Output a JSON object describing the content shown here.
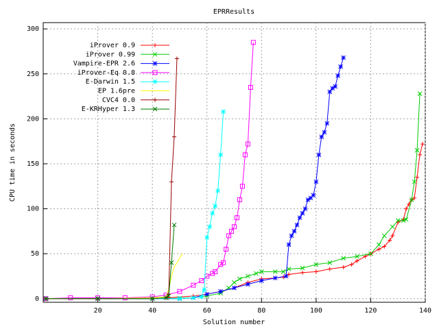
{
  "chart_data": {
    "type": "line",
    "title": "EPRResults",
    "x_label": "Solution number",
    "y_label": "CPU time in seconds",
    "xlim": [
      0,
      140
    ],
    "ylim": [
      -4,
      307
    ],
    "xticks": [
      20,
      40,
      60,
      80,
      100,
      120,
      140
    ],
    "yticks": [
      0,
      50,
      100,
      150,
      200,
      250,
      300
    ],
    "grid": true,
    "legend": "top-left",
    "series": [
      {
        "name": "iProver 0.9",
        "color": "#ff0000",
        "marker": "plus",
        "x": [
          1,
          20,
          40,
          46,
          55,
          60,
          65,
          70,
          75,
          80,
          85,
          88,
          90,
          95,
          100,
          105,
          110,
          113,
          115,
          118,
          120,
          123,
          125,
          127,
          128,
          130,
          132,
          133,
          134,
          135,
          136,
          137,
          138,
          139
        ],
        "values": [
          0,
          0,
          0.5,
          1,
          3,
          5,
          8,
          12,
          18,
          22,
          23,
          24,
          27,
          29,
          30,
          33,
          35,
          38,
          42,
          47,
          50,
          55,
          58,
          65,
          70,
          85,
          88,
          100,
          105,
          110,
          112,
          135,
          160,
          172
        ]
      },
      {
        "name": "iProver 0.99",
        "color": "#00cc00",
        "marker": "cross",
        "x": [
          1,
          20,
          40,
          50,
          55,
          60,
          65,
          68,
          70,
          72,
          75,
          78,
          80,
          85,
          88,
          90,
          95,
          100,
          105,
          110,
          115,
          120,
          123,
          125,
          128,
          130,
          132,
          133,
          135,
          136,
          137,
          138
        ],
        "values": [
          0,
          0,
          0,
          0.5,
          1,
          3,
          6,
          12,
          18,
          22,
          25,
          28,
          30,
          30,
          30,
          33,
          34,
          38,
          40,
          45,
          47,
          50,
          60,
          70,
          80,
          87,
          87,
          88,
          110,
          130,
          165,
          228
        ]
      },
      {
        "name": "Vampire-EPR 2.6",
        "color": "#0000ff",
        "marker": "star",
        "x": [
          1,
          20,
          40,
          50,
          55,
          60,
          65,
          70,
          75,
          80,
          85,
          89,
          90,
          91,
          92,
          93,
          94,
          95,
          96,
          97,
          98,
          99,
          100,
          101,
          102,
          103,
          104,
          105,
          106,
          107,
          108,
          109,
          110
        ],
        "values": [
          0,
          0,
          0,
          0,
          1,
          5,
          8,
          12,
          16,
          20,
          23,
          25,
          60,
          70,
          75,
          82,
          90,
          95,
          100,
          110,
          112,
          115,
          130,
          160,
          180,
          185,
          195,
          230,
          234,
          236,
          248,
          258,
          268
        ]
      },
      {
        "name": "iProver-Eq 0.8",
        "color": "#ff00ff",
        "marker": "square",
        "x": [
          1,
          10,
          20,
          30,
          40,
          45,
          50,
          55,
          58,
          60,
          62,
          63,
          65,
          66,
          67,
          68,
          69,
          70,
          71,
          72,
          73,
          74,
          75,
          76,
          77
        ],
        "values": [
          0,
          1,
          1,
          1,
          2,
          4,
          8,
          15,
          20,
          25,
          28,
          30,
          38,
          40,
          55,
          70,
          75,
          80,
          90,
          110,
          125,
          160,
          172,
          235,
          285
        ]
      },
      {
        "name": "E-Darwin 1.5",
        "color": "#00ffff",
        "marker": "star",
        "x": [
          1,
          20,
          40,
          50,
          55,
          58,
          59,
          60,
          61,
          62,
          63,
          64,
          65,
          66
        ],
        "values": [
          0,
          0,
          0,
          0,
          1,
          2,
          10,
          68,
          80,
          95,
          103,
          120,
          160,
          208
        ]
      },
      {
        "name": "EP 1.6pre",
        "color": "#ffff00",
        "marker": "none",
        "x": [
          1,
          20,
          40,
          45,
          46,
          47,
          48,
          49,
          50,
          51
        ],
        "values": [
          0,
          0,
          1,
          2,
          10,
          25,
          35,
          40,
          45,
          50
        ]
      },
      {
        "name": "CVC4 0.0",
        "color": "#990000",
        "marker": "plus",
        "x": [
          1,
          20,
          40,
          45,
          46,
          47,
          48,
          49
        ],
        "values": [
          0,
          0,
          0,
          1,
          5,
          130,
          180,
          267
        ]
      },
      {
        "name": "E-KRHyper 1.3",
        "color": "#007700",
        "marker": "cross",
        "x": [
          1,
          20,
          40,
          45,
          46,
          47,
          48
        ],
        "values": [
          0,
          0,
          0,
          1,
          3,
          40,
          82
        ]
      }
    ]
  }
}
